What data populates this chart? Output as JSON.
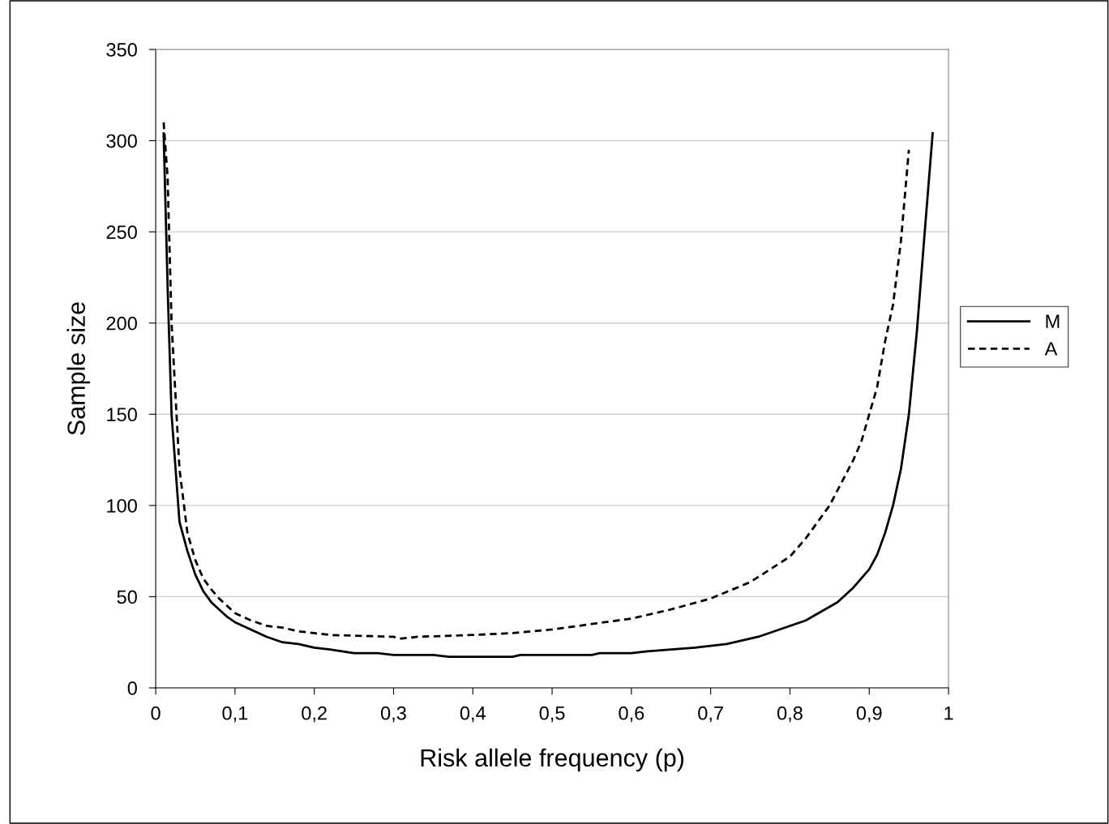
{
  "chart_data": {
    "type": "line",
    "xlabel": "Risk allele frequency (p)",
    "ylabel": "Sample size",
    "xlim": [
      0,
      1
    ],
    "ylim": [
      0,
      350
    ],
    "xticks": [
      0,
      {
        "value": 0.1,
        "label": "0,1"
      },
      {
        "value": 0.2,
        "label": "0,2"
      },
      {
        "value": 0.3,
        "label": "0,3"
      },
      {
        "value": 0.4,
        "label": "0,4"
      },
      {
        "value": 0.5,
        "label": "0,5"
      },
      {
        "value": 0.6,
        "label": "0,6"
      },
      {
        "value": 0.7,
        "label": "0,7"
      },
      {
        "value": 0.8,
        "label": "0,8"
      },
      {
        "value": 0.9,
        "label": "0,9"
      },
      1
    ],
    "yticks": [
      0,
      50,
      100,
      150,
      200,
      250,
      300,
      350
    ],
    "grid": "y",
    "legend": "right",
    "marker": "none",
    "series": [
      {
        "name": "M",
        "color": "#000000",
        "line_style": "solid",
        "x": [
          0.01,
          0.015,
          0.02,
          0.03,
          0.04,
          0.05,
          0.06,
          0.07,
          0.08,
          0.09,
          0.1,
          0.12,
          0.14,
          0.16,
          0.18,
          0.2,
          0.22,
          0.25,
          0.28,
          0.3,
          0.35,
          0.37,
          0.45,
          0.46,
          0.55,
          0.56,
          0.6,
          0.62,
          0.65,
          0.68,
          0.7,
          0.72,
          0.74,
          0.76,
          0.78,
          0.8,
          0.82,
          0.84,
          0.86,
          0.88,
          0.89,
          0.9,
          0.91,
          0.92,
          0.93,
          0.94,
          0.95,
          0.96,
          0.97,
          0.98
        ],
        "values": [
          304,
          220,
          150,
          91,
          75,
          62,
          53,
          47,
          43,
          39,
          36,
          32,
          28,
          25,
          24,
          22,
          21,
          19,
          19,
          18,
          18,
          17,
          17,
          18,
          18,
          19,
          19,
          20,
          21,
          22,
          23,
          24,
          26,
          28,
          31,
          34,
          37,
          42,
          47,
          55,
          60,
          65,
          73,
          85,
          100,
          120,
          150,
          195,
          250,
          304
        ]
      },
      {
        "name": "A",
        "color": "#000000",
        "line_style": "dashed",
        "x": [
          0.01,
          0.015,
          0.02,
          0.03,
          0.04,
          0.05,
          0.06,
          0.07,
          0.08,
          0.09,
          0.1,
          0.12,
          0.14,
          0.16,
          0.18,
          0.2,
          0.22,
          0.3,
          0.31,
          0.33,
          0.4,
          0.45,
          0.5,
          0.55,
          0.6,
          0.65,
          0.7,
          0.75,
          0.8,
          0.82,
          0.85,
          0.88,
          0.89,
          0.9,
          0.91,
          0.92,
          0.93,
          0.94,
          0.95
        ],
        "values": [
          310,
          280,
          200,
          120,
          85,
          70,
          60,
          54,
          49,
          45,
          41,
          37,
          34,
          33,
          31,
          30,
          29,
          28,
          27,
          28,
          29,
          30,
          32,
          35,
          38,
          43,
          49,
          58,
          72,
          82,
          100,
          125,
          135,
          150,
          165,
          190,
          210,
          245,
          295
        ]
      }
    ]
  }
}
